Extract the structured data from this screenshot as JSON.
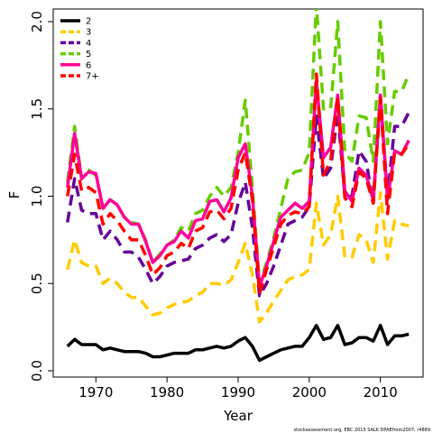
{
  "chart_data": {
    "type": "line",
    "xlabel": "Year",
    "ylabel": "F",
    "xlim": [
      1964,
      2016
    ],
    "ylim": [
      0,
      2.2
    ],
    "x_ticks": [
      1970,
      1980,
      1990,
      2000,
      2010
    ],
    "y_ticks": [
      0.0,
      0.5,
      1.0,
      1.5,
      2.0
    ],
    "y_tick_labels": [
      "0.0",
      "0.5",
      "1.0",
      "1.5",
      "2.0"
    ],
    "grid": false,
    "legend_position": "top-left",
    "footer": "stockassessment.org, EBC 2015 SALK DPAEfrom2007, r4889",
    "x": [
      1966,
      1967,
      1968,
      1969,
      1970,
      1971,
      1972,
      1973,
      1974,
      1975,
      1976,
      1977,
      1978,
      1979,
      1980,
      1981,
      1982,
      1983,
      1984,
      1985,
      1986,
      1987,
      1988,
      1989,
      1990,
      1991,
      1992,
      1993,
      1994,
      1995,
      1996,
      1997,
      1998,
      1999,
      2000,
      2001,
      2002,
      2003,
      2004,
      2005,
      2006,
      2007,
      2008,
      2009,
      2010,
      2011,
      2012,
      2013,
      2014
    ],
    "series": [
      {
        "name": "2",
        "color": "#000000",
        "style": "solid",
        "values": [
          0.14,
          0.18,
          0.15,
          0.15,
          0.15,
          0.12,
          0.13,
          0.12,
          0.11,
          0.11,
          0.11,
          0.1,
          0.08,
          0.08,
          0.09,
          0.1,
          0.1,
          0.1,
          0.12,
          0.12,
          0.13,
          0.14,
          0.13,
          0.14,
          0.17,
          0.19,
          0.14,
          0.06,
          0.08,
          0.1,
          0.12,
          0.13,
          0.14,
          0.14,
          0.19,
          0.26,
          0.18,
          0.19,
          0.26,
          0.15,
          0.16,
          0.19,
          0.19,
          0.17,
          0.26,
          0.15,
          0.2,
          0.2,
          0.21
        ]
      },
      {
        "name": "3",
        "color": "#ffcc00",
        "style": "dashed",
        "values": [
          0.58,
          0.75,
          0.62,
          0.6,
          0.6,
          0.5,
          0.53,
          0.5,
          0.45,
          0.42,
          0.42,
          0.37,
          0.32,
          0.33,
          0.36,
          0.38,
          0.39,
          0.4,
          0.43,
          0.45,
          0.5,
          0.5,
          0.49,
          0.52,
          0.62,
          0.73,
          0.55,
          0.28,
          0.33,
          0.4,
          0.46,
          0.52,
          0.54,
          0.55,
          0.58,
          0.96,
          0.72,
          0.78,
          1.0,
          0.65,
          0.65,
          0.78,
          0.75,
          0.62,
          1.02,
          0.64,
          0.86,
          0.84,
          0.83
        ]
      },
      {
        "name": "4",
        "color": "#660099",
        "style": "dashed",
        "values": [
          0.85,
          1.1,
          0.92,
          0.9,
          0.9,
          0.75,
          0.8,
          0.75,
          0.68,
          0.68,
          0.65,
          0.58,
          0.5,
          0.54,
          0.6,
          0.62,
          0.63,
          0.64,
          0.7,
          0.72,
          0.76,
          0.78,
          0.74,
          0.78,
          0.96,
          1.08,
          0.82,
          0.43,
          0.5,
          0.6,
          0.72,
          0.84,
          0.86,
          0.88,
          0.94,
          1.46,
          1.1,
          1.16,
          1.48,
          1.0,
          1.0,
          1.26,
          1.2,
          0.96,
          1.58,
          1.0,
          1.4,
          1.4,
          1.48
        ]
      },
      {
        "name": "5",
        "color": "#66cc00",
        "style": "dashed",
        "values": [
          1.08,
          1.4,
          1.1,
          1.15,
          1.12,
          0.93,
          0.98,
          0.95,
          0.88,
          0.85,
          0.84,
          0.75,
          0.62,
          0.67,
          0.72,
          0.75,
          0.82,
          0.8,
          0.9,
          0.92,
          1.0,
          1.05,
          1.0,
          1.05,
          1.25,
          1.55,
          1.05,
          0.5,
          0.62,
          0.76,
          0.93,
          1.1,
          1.14,
          1.15,
          1.25,
          2.1,
          1.5,
          1.5,
          2.0,
          1.25,
          1.2,
          1.46,
          1.45,
          1.2,
          2.0,
          1.3,
          1.6,
          1.6,
          1.7
        ]
      },
      {
        "name": "6",
        "color": "#ff0099",
        "style": "solid",
        "values": [
          1.05,
          1.36,
          1.1,
          1.14,
          1.13,
          0.93,
          0.98,
          0.95,
          0.88,
          0.84,
          0.84,
          0.74,
          0.62,
          0.66,
          0.72,
          0.74,
          0.8,
          0.76,
          0.86,
          0.87,
          0.97,
          0.98,
          0.91,
          0.99,
          1.22,
          1.3,
          1.0,
          0.48,
          0.6,
          0.74,
          0.88,
          0.92,
          0.96,
          0.93,
          0.97,
          1.66,
          1.22,
          1.28,
          1.58,
          1.03,
          0.97,
          1.16,
          1.12,
          0.98,
          1.58,
          0.98,
          1.26,
          1.24,
          1.32
        ]
      },
      {
        "name": "7+",
        "color": "#ff0000",
        "style": "dashed",
        "values": [
          1.0,
          1.24,
          1.03,
          1.05,
          1.02,
          0.84,
          0.9,
          0.86,
          0.8,
          0.75,
          0.75,
          0.66,
          0.55,
          0.59,
          0.66,
          0.68,
          0.73,
          0.7,
          0.8,
          0.82,
          0.91,
          0.92,
          0.87,
          0.93,
          1.15,
          1.25,
          0.98,
          0.44,
          0.58,
          0.71,
          0.84,
          0.89,
          0.91,
          0.9,
          0.94,
          1.7,
          1.12,
          1.2,
          1.56,
          0.99,
          0.94,
          1.14,
          1.1,
          0.96,
          1.56,
          0.9,
          1.25,
          1.24,
          1.3
        ]
      }
    ]
  }
}
